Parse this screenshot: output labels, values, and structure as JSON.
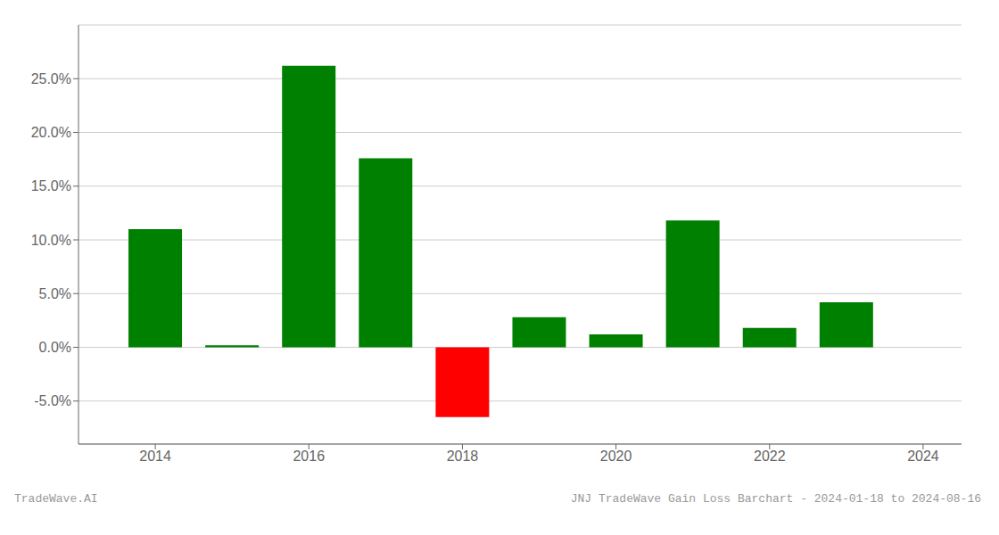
{
  "chart_data": {
    "type": "bar",
    "x": [
      2014,
      2015,
      2016,
      2017,
      2018,
      2019,
      2020,
      2021,
      2022,
      2023
    ],
    "values": [
      0.11,
      0.002,
      0.262,
      0.176,
      -0.065,
      0.028,
      0.012,
      0.118,
      0.018,
      0.042
    ],
    "colors": [
      "#008000",
      "#008000",
      "#008000",
      "#008000",
      "#ff0000",
      "#008000",
      "#008000",
      "#008000",
      "#008000",
      "#008000"
    ],
    "xlim": [
      2013.0,
      2024.5
    ],
    "xticks": [
      2014,
      2016,
      2018,
      2020,
      2022,
      2024
    ],
    "ylim": [
      -0.09,
      0.3
    ],
    "yticks": [
      {
        "value": -0.05,
        "label": "-5.0%"
      },
      {
        "value": 0.0,
        "label": "0.0%"
      },
      {
        "value": 0.05,
        "label": "5.0%"
      },
      {
        "value": 0.1,
        "label": "10.0%"
      },
      {
        "value": 0.15,
        "label": "15.0%"
      },
      {
        "value": 0.2,
        "label": "20.0%"
      },
      {
        "value": 0.25,
        "label": "25.0%"
      }
    ],
    "grid": true,
    "annotations": [
      "TradeWave.AI",
      "JNJ TradeWave Gain Loss Barchart - 2024-01-18 to 2024-08-16"
    ]
  }
}
